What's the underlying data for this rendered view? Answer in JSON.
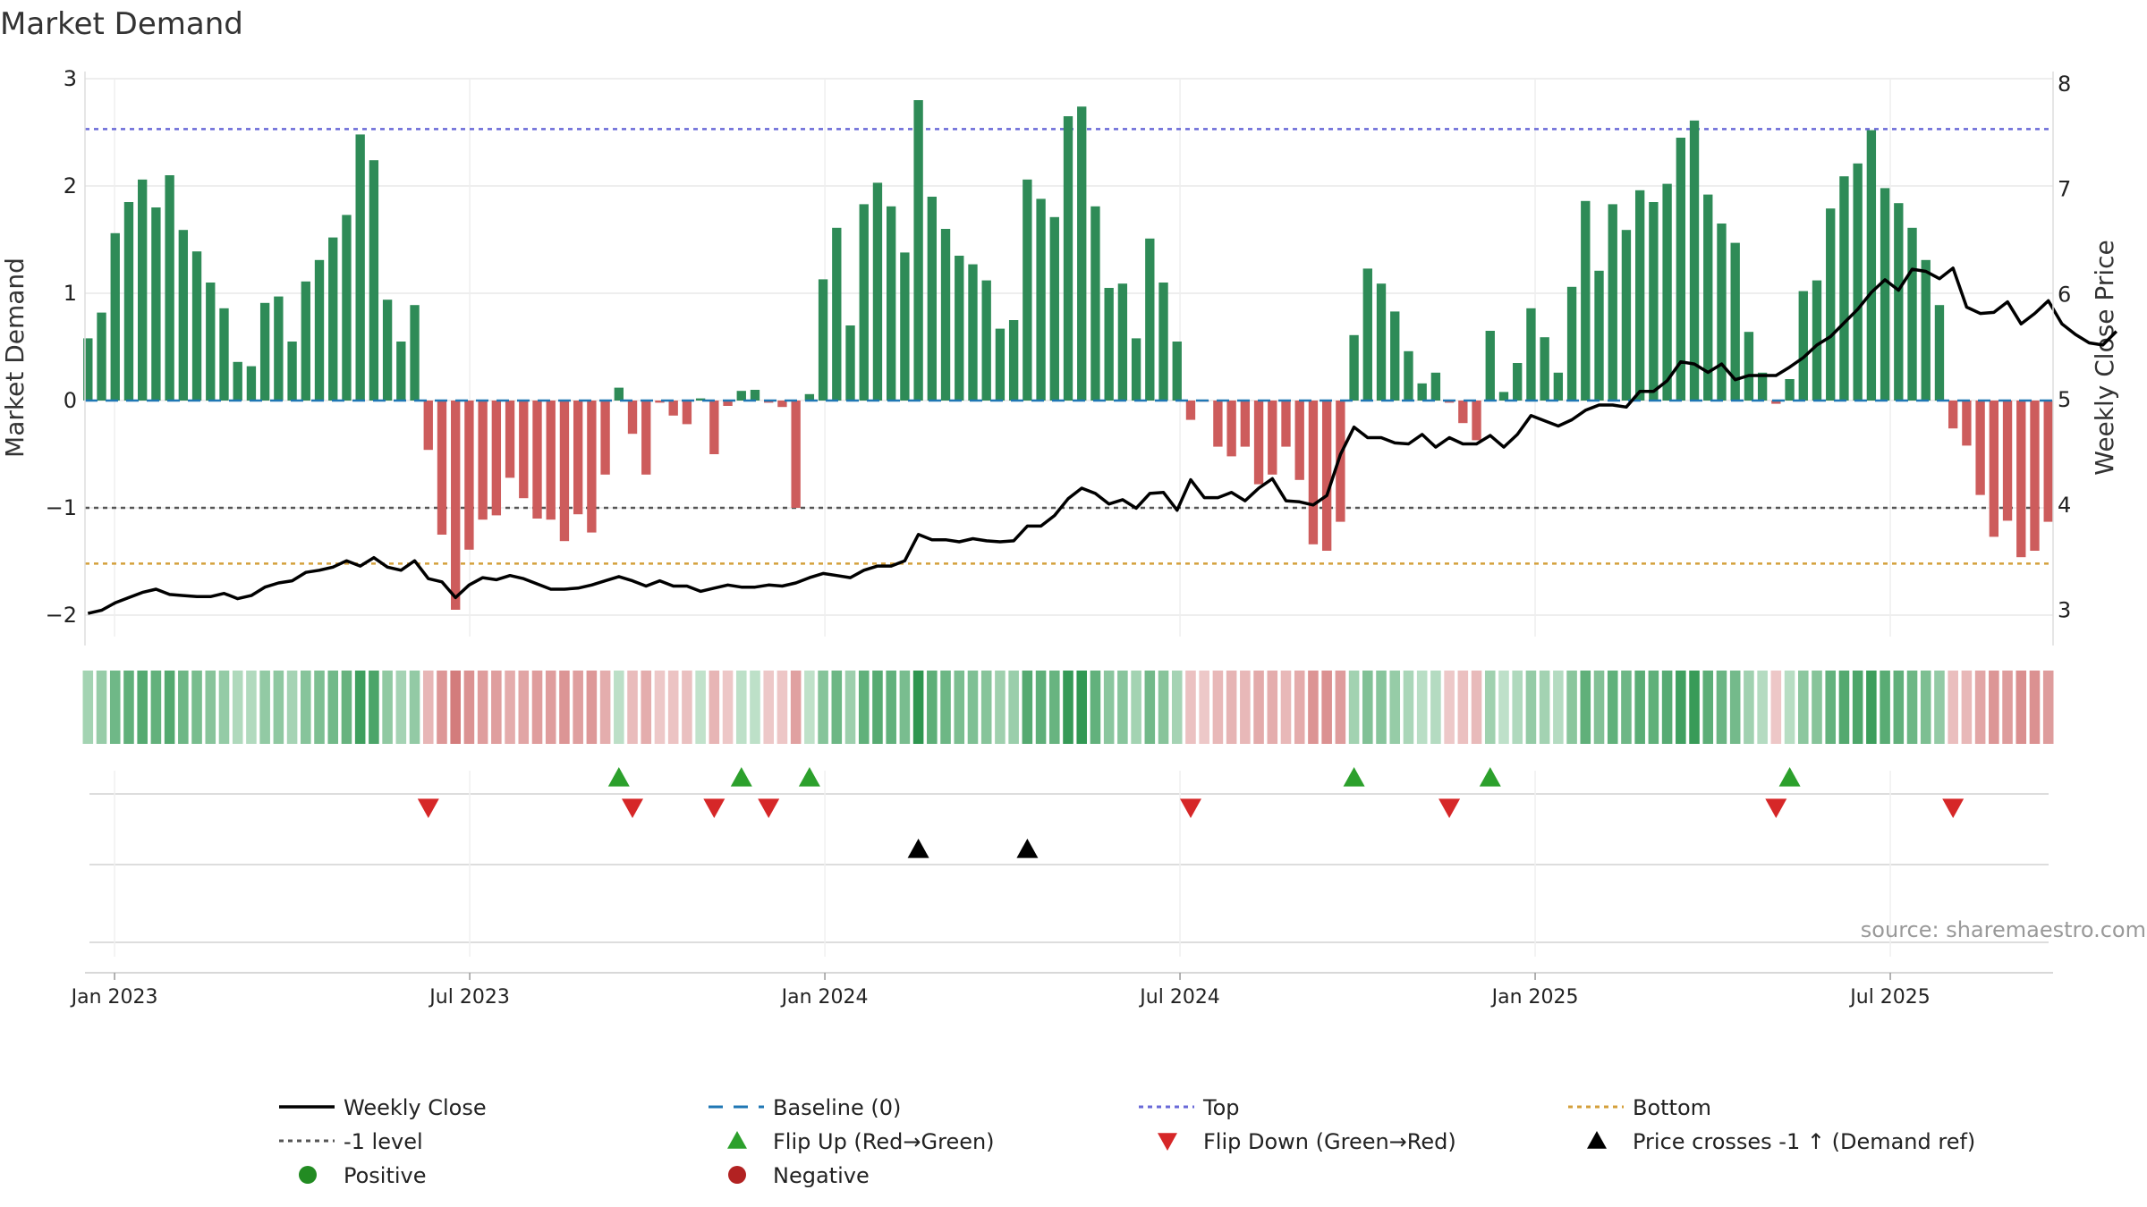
{
  "chart_data": {
    "type": "bar",
    "title": "Market Demand",
    "ylabel": "Market Demand",
    "y2label": "Weekly Close Price",
    "ylim": [
      -2.2,
      3.0
    ],
    "y2lim": [
      2.75,
      8.05
    ],
    "yticks": [
      -2,
      -1,
      0,
      1,
      2,
      3
    ],
    "y2ticks": [
      3,
      4,
      5,
      6,
      7,
      8
    ],
    "x_range_months": [
      -0.5,
      32.75
    ],
    "x_ticks": [
      {
        "m": 0,
        "label": "Jan 2023"
      },
      {
        "m": 6,
        "label": "Jul 2023"
      },
      {
        "m": 12,
        "label": "Jan 2024"
      },
      {
        "m": 18,
        "label": "Jul 2024"
      },
      {
        "m": 24,
        "label": "Jan 2025"
      },
      {
        "m": 30,
        "label": "Jul 2025"
      }
    ],
    "reference_lines": {
      "top": 2.53,
      "bottom": -1.52,
      "minus_one": -1.0,
      "baseline": 0
    },
    "start_week_month": -0.45,
    "week_step_months": 0.23,
    "series": [
      {
        "name": "Market Demand",
        "values": [
          0.58,
          0.82,
          1.56,
          1.85,
          2.06,
          1.8,
          2.1,
          1.59,
          1.39,
          1.1,
          0.86,
          0.36,
          0.32,
          0.91,
          0.97,
          0.55,
          1.11,
          1.31,
          1.52,
          1.73,
          2.48,
          2.24,
          0.94,
          0.55,
          0.89,
          -0.46,
          -1.25,
          -1.95,
          -1.39,
          -1.11,
          -1.07,
          -0.72,
          -0.91,
          -1.1,
          -1.11,
          -1.31,
          -1.06,
          -1.23,
          -0.69,
          0.12,
          -0.31,
          -0.69,
          -0.02,
          -0.14,
          -0.22,
          0.02,
          -0.5,
          -0.05,
          0.09,
          0.1,
          -0.02,
          -0.06,
          -1.0,
          0.06,
          1.13,
          1.61,
          0.7,
          1.83,
          2.03,
          1.81,
          1.38,
          2.8,
          1.9,
          1.6,
          1.35,
          1.27,
          1.12,
          0.67,
          0.75,
          2.06,
          1.88,
          1.71,
          2.65,
          2.74,
          1.81,
          1.05,
          1.09,
          0.58,
          1.51,
          1.1,
          0.55,
          -0.18,
          -0.01,
          -0.43,
          -0.52,
          -0.43,
          -0.78,
          -0.69,
          -0.43,
          -0.74,
          -1.34,
          -1.4,
          -1.13,
          0.61,
          1.23,
          1.09,
          0.83,
          0.46,
          0.16,
          0.26,
          -0.02,
          -0.21,
          -0.37,
          0.65,
          0.08,
          0.35,
          0.86,
          0.59,
          0.26,
          1.06,
          1.86,
          1.21,
          1.83,
          1.59,
          1.96,
          1.85,
          2.02,
          2.45,
          2.61,
          1.92,
          1.65,
          1.47,
          0.64,
          0.26,
          -0.03,
          0.2,
          1.02,
          1.12,
          1.79,
          2.09,
          2.21,
          2.52,
          1.98,
          1.84,
          1.61,
          1.31,
          0.89,
          -0.26,
          -0.42,
          -0.88,
          -1.27,
          -1.12,
          -1.46,
          -1.4,
          -1.13
        ]
      },
      {
        "name": "Weekly Close",
        "values": [
          2.97,
          3.0,
          3.07,
          3.12,
          3.17,
          3.2,
          3.15,
          3.14,
          3.13,
          3.13,
          3.16,
          3.11,
          3.14,
          3.22,
          3.26,
          3.28,
          3.36,
          3.38,
          3.41,
          3.47,
          3.42,
          3.5,
          3.41,
          3.38,
          3.47,
          3.3,
          3.27,
          3.12,
          3.24,
          3.31,
          3.29,
          3.33,
          3.3,
          3.25,
          3.2,
          3.2,
          3.21,
          3.24,
          3.28,
          3.32,
          3.28,
          3.23,
          3.28,
          3.23,
          3.23,
          3.18,
          3.21,
          3.24,
          3.22,
          3.22,
          3.24,
          3.23,
          3.26,
          3.31,
          3.35,
          3.33,
          3.31,
          3.38,
          3.42,
          3.42,
          3.47,
          3.72,
          3.67,
          3.67,
          3.65,
          3.68,
          3.66,
          3.65,
          3.66,
          3.8,
          3.8,
          3.9,
          4.06,
          4.16,
          4.11,
          4.01,
          4.05,
          3.97,
          4.11,
          4.12,
          3.95,
          4.24,
          4.07,
          4.07,
          4.12,
          4.04,
          4.16,
          4.25,
          4.04,
          4.03,
          4.0,
          4.09,
          4.48,
          4.74,
          4.64,
          4.64,
          4.59,
          4.58,
          4.67,
          4.55,
          4.64,
          4.58,
          4.58,
          4.66,
          4.55,
          4.67,
          4.85,
          4.8,
          4.75,
          4.81,
          4.9,
          4.95,
          4.95,
          4.93,
          5.08,
          5.08,
          5.18,
          5.36,
          5.34,
          5.26,
          5.34,
          5.19,
          5.23,
          5.23,
          5.23,
          5.31,
          5.4,
          5.52,
          5.6,
          5.73,
          5.86,
          6.02,
          6.14,
          6.04,
          6.24,
          6.22,
          6.15,
          6.25,
          5.88,
          5.82,
          5.83,
          5.93,
          5.72,
          5.82,
          5.94,
          5.72,
          5.62,
          5.54,
          5.52,
          5.65
        ]
      }
    ],
    "legend": [
      {
        "label": "Weekly Close",
        "marker": "line"
      },
      {
        "label": "Baseline (0)",
        "marker": "dash"
      },
      {
        "label": "Top",
        "marker": "dots-blue"
      },
      {
        "label": "Bottom",
        "marker": "dots-orange"
      },
      {
        "label": "-1 level",
        "marker": "dots-gray"
      },
      {
        "label": "Flip Up (Red→Green)",
        "marker": "tri-up-green"
      },
      {
        "label": "Flip Down (Green→Red)",
        "marker": "tri-down-red"
      },
      {
        "label": "Price crosses -1 ↑ (Demand ref)",
        "marker": "tri-up-black"
      },
      {
        "label": "Positive",
        "marker": "dot-green"
      },
      {
        "label": "Negative",
        "marker": "dot-red"
      }
    ],
    "annotation": "source: sharemaestro.com"
  },
  "colors": {
    "positive_bar": "#2e8b57",
    "negative_bar": "#cd5c5c",
    "price_line": "#000000",
    "baseline": "#1f77b4",
    "top": "#6a6ad8",
    "bottom": "#d4a03c",
    "minus_one": "#555555",
    "flip_up": "#2ca02c",
    "flip_down": "#d62728",
    "cross": "#000000",
    "positive_dot": "#228b22",
    "negative_dot": "#b22222"
  }
}
